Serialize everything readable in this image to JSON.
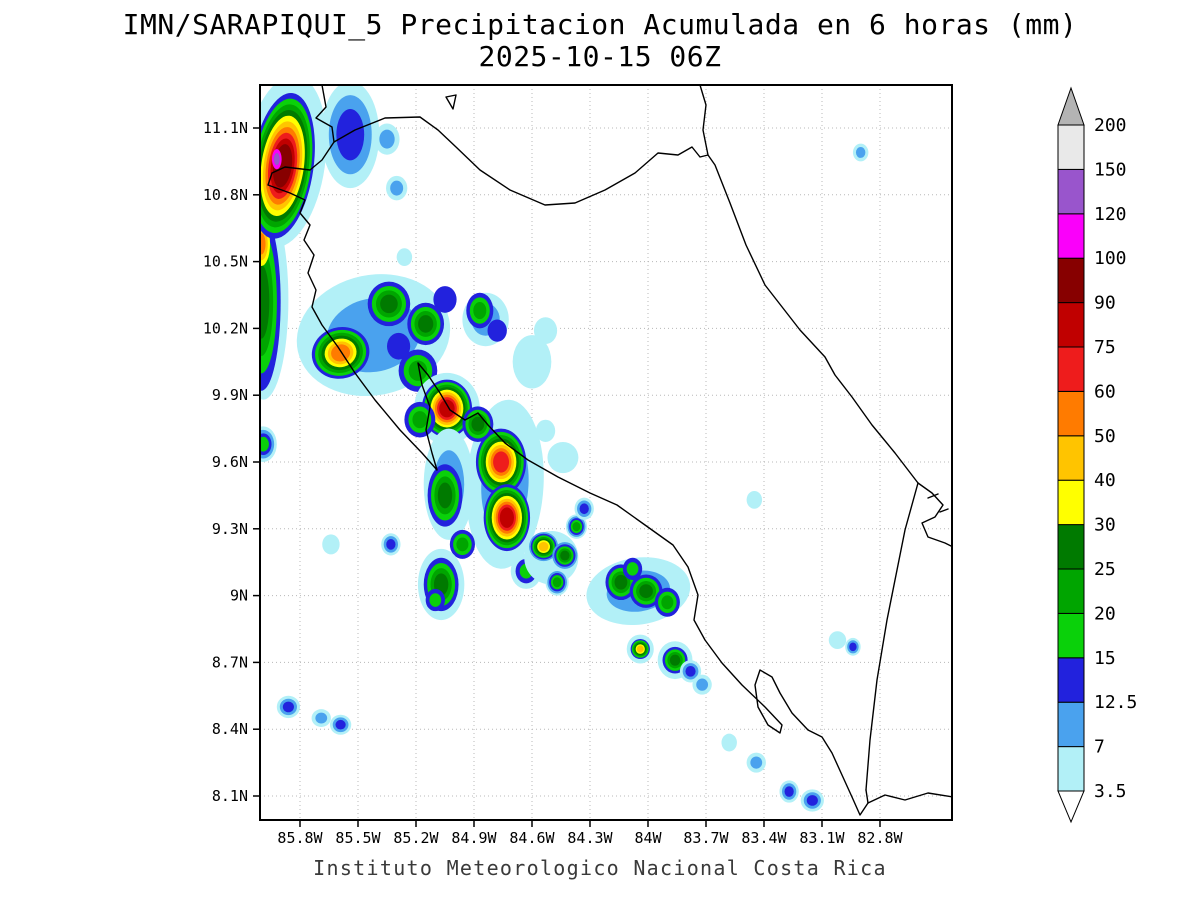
{
  "footer": "Instituto Meteorologico Nacional Costa Rica",
  "chart_data": {
    "type": "heatmap",
    "title": "IMN/SARAPIQUI_5 Precipitacion Acumulada en 6 horas (mm)",
    "subtitle": "2025-10-15 06Z",
    "units": "mm",
    "grid": true,
    "x_axis": {
      "ticks": [
        {
          "label": "85.8W",
          "lon": 85.8
        },
        {
          "label": "85.5W",
          "lon": 85.5
        },
        {
          "label": "85.2W",
          "lon": 85.2
        },
        {
          "label": "84.9W",
          "lon": 84.9
        },
        {
          "label": "84.6W",
          "lon": 84.6
        },
        {
          "label": "84.3W",
          "lon": 84.3
        },
        {
          "label": "84W",
          "lon": 84.0
        },
        {
          "label": "83.7W",
          "lon": 83.7
        },
        {
          "label": "83.4W",
          "lon": 83.4
        },
        {
          "label": "83.1W",
          "lon": 83.1
        },
        {
          "label": "82.8W",
          "lon": 82.8
        }
      ]
    },
    "y_axis": {
      "ticks": [
        {
          "label": "8.1N",
          "lat": 8.1
        },
        {
          "label": "8.4N",
          "lat": 8.4
        },
        {
          "label": "8.7N",
          "lat": 8.7
        },
        {
          "label": "9N",
          "lat": 9.0
        },
        {
          "label": "9.3N",
          "lat": 9.3
        },
        {
          "label": "9.6N",
          "lat": 9.6
        },
        {
          "label": "9.9N",
          "lat": 9.9
        },
        {
          "label": "10.2N",
          "lat": 10.2
        },
        {
          "label": "10.5N",
          "lat": 10.5
        },
        {
          "label": "10.8N",
          "lat": 10.8
        },
        {
          "label": "11.1N",
          "lat": 11.1
        }
      ]
    },
    "colorbar": {
      "levels": [
        "3.5",
        "7",
        "12.5",
        "15",
        "20",
        "25",
        "30",
        "40",
        "50",
        "60",
        "75",
        "90",
        "100",
        "120",
        "150",
        "200"
      ],
      "colors": [
        "#b2f0f7",
        "#4aa2ee",
        "#2222dd",
        "#0ad10a",
        "#00a500",
        "#007a00",
        "#ffff00",
        "#ffc400",
        "#ff7b00",
        "#ee1c1c",
        "#c00000",
        "#870000",
        "#fa00fa",
        "#9955cc",
        "#e9e9e9"
      ],
      "over_color": "#b4b4b4",
      "under_color": "#ffffff"
    },
    "cells": [
      {
        "lon": 85.88,
        "lat": 10.95,
        "rx": 0.21,
        "ry": 0.39,
        "peak": 7,
        "rot": 8
      },
      {
        "lon": 85.99,
        "lat": 10.33,
        "rx": 0.13,
        "ry": 0.45,
        "peak": 7
      },
      {
        "lon": 86.0,
        "lat": 10.32,
        "rx": 0.1,
        "ry": 0.4,
        "base": 12.5,
        "peak": 25
      },
      {
        "lon": 86.0,
        "lat": 10.58,
        "rx": 0.045,
        "ry": 0.1,
        "base": 30,
        "peak": 50
      },
      {
        "lon": 85.89,
        "lat": 10.93,
        "rx": 0.16,
        "ry": 0.33,
        "base": 12.5,
        "peak": 90,
        "rot": 8
      },
      {
        "lon": 85.92,
        "lat": 10.96,
        "rx": 0.025,
        "ry": 0.045,
        "base": 100,
        "peak": 120
      },
      {
        "lon": 85.99,
        "lat": 9.68,
        "rx": 0.07,
        "ry": 0.08,
        "peak": 15
      },
      {
        "lon": 85.54,
        "lat": 11.07,
        "rx": 0.15,
        "ry": 0.24,
        "peak": 12.5
      },
      {
        "lon": 85.35,
        "lat": 11.05,
        "rx": 0.065,
        "ry": 0.07,
        "peak": 7
      },
      {
        "lon": 85.3,
        "lat": 10.83,
        "rx": 0.055,
        "ry": 0.055,
        "peak": 7
      },
      {
        "lon": 85.26,
        "lat": 10.52,
        "rx": 0.04,
        "ry": 0.04,
        "peak": 3.5
      },
      {
        "lon": 85.42,
        "lat": 10.17,
        "rx": 0.4,
        "ry": 0.27,
        "peak": 7,
        "rot": -12
      },
      {
        "lon": 85.59,
        "lat": 10.09,
        "rx": 0.15,
        "ry": 0.115,
        "base": 12.5,
        "peak": 50,
        "rot": -15
      },
      {
        "lon": 85.34,
        "lat": 10.31,
        "rx": 0.11,
        "ry": 0.1,
        "base": 12.5,
        "peak": 25
      },
      {
        "lon": 85.15,
        "lat": 10.22,
        "rx": 0.095,
        "ry": 0.095,
        "base": 12.5,
        "peak": 25
      },
      {
        "lon": 85.19,
        "lat": 10.01,
        "rx": 0.1,
        "ry": 0.095,
        "base": 12.5,
        "peak": 20
      },
      {
        "lon": 85.29,
        "lat": 10.12,
        "rx": 0.06,
        "ry": 0.06,
        "base": 12.5,
        "peak": 12.5
      },
      {
        "lon": 85.05,
        "lat": 10.33,
        "rx": 0.06,
        "ry": 0.06,
        "base": 12.5,
        "peak": 12.5
      },
      {
        "lon": 84.84,
        "lat": 10.24,
        "rx": 0.12,
        "ry": 0.12,
        "peak": 7
      },
      {
        "lon": 84.87,
        "lat": 10.28,
        "rx": 0.07,
        "ry": 0.08,
        "base": 12.5,
        "peak": 20
      },
      {
        "lon": 84.78,
        "lat": 10.19,
        "rx": 0.05,
        "ry": 0.05,
        "base": 12.5,
        "peak": 12.5
      },
      {
        "lon": 84.6,
        "lat": 10.05,
        "rx": 0.1,
        "ry": 0.12,
        "peak": 3.5
      },
      {
        "lon": 84.53,
        "lat": 10.19,
        "rx": 0.06,
        "ry": 0.06,
        "peak": 3.5
      },
      {
        "lon": 85.04,
        "lat": 9.84,
        "rx": 0.17,
        "ry": 0.16,
        "peak": 7
      },
      {
        "lon": 85.04,
        "lat": 9.84,
        "rx": 0.13,
        "ry": 0.13,
        "base": 12.5,
        "peak": 75
      },
      {
        "lon": 85.18,
        "lat": 9.79,
        "rx": 0.08,
        "ry": 0.08,
        "base": 12.5,
        "peak": 20
      },
      {
        "lon": 84.74,
        "lat": 9.5,
        "rx": 0.2,
        "ry": 0.38,
        "peak": 7,
        "rot": 3
      },
      {
        "lon": 85.03,
        "lat": 9.5,
        "rx": 0.13,
        "ry": 0.25,
        "peak": 7
      },
      {
        "lon": 84.76,
        "lat": 9.6,
        "rx": 0.13,
        "ry": 0.15,
        "base": 12.5,
        "peak": 60
      },
      {
        "lon": 84.73,
        "lat": 9.35,
        "rx": 0.12,
        "ry": 0.15,
        "base": 12.5,
        "peak": 75
      },
      {
        "lon": 84.88,
        "lat": 9.77,
        "rx": 0.08,
        "ry": 0.08,
        "base": 12.5,
        "peak": 25
      },
      {
        "lon": 85.05,
        "lat": 9.45,
        "rx": 0.09,
        "ry": 0.14,
        "base": 12.5,
        "peak": 25
      },
      {
        "lon": 84.96,
        "lat": 9.23,
        "rx": 0.065,
        "ry": 0.065,
        "base": 12.5,
        "peak": 20
      },
      {
        "lon": 84.63,
        "lat": 9.11,
        "rx": 0.08,
        "ry": 0.08,
        "peak": 7
      },
      {
        "lon": 84.63,
        "lat": 9.11,
        "rx": 0.055,
        "ry": 0.055,
        "base": 12.5,
        "peak": 15
      },
      {
        "lon": 85.07,
        "lat": 9.05,
        "rx": 0.12,
        "ry": 0.16,
        "peak": 7
      },
      {
        "lon": 85.07,
        "lat": 9.05,
        "rx": 0.09,
        "ry": 0.12,
        "base": 12.5,
        "peak": 25
      },
      {
        "lon": 85.1,
        "lat": 8.98,
        "rx": 0.05,
        "ry": 0.05,
        "base": 12.5,
        "peak": 15
      },
      {
        "lon": 85.33,
        "lat": 9.23,
        "rx": 0.05,
        "ry": 0.05,
        "peak": 12.5
      },
      {
        "lon": 85.64,
        "lat": 9.23,
        "rx": 0.045,
        "ry": 0.045,
        "peak": 3.5
      },
      {
        "lon": 84.5,
        "lat": 9.17,
        "rx": 0.14,
        "ry": 0.12,
        "peak": 3.5,
        "rot": -20
      },
      {
        "lon": 84.54,
        "lat": 9.22,
        "rx": 0.075,
        "ry": 0.065,
        "base": 7,
        "peak": 40
      },
      {
        "lon": 84.43,
        "lat": 9.18,
        "rx": 0.065,
        "ry": 0.06,
        "base": 7,
        "peak": 25
      },
      {
        "lon": 84.37,
        "lat": 9.31,
        "rx": 0.055,
        "ry": 0.055,
        "peak": 20
      },
      {
        "lon": 84.33,
        "lat": 9.39,
        "rx": 0.05,
        "ry": 0.05,
        "peak": 12.5
      },
      {
        "lon": 84.47,
        "lat": 9.06,
        "rx": 0.06,
        "ry": 0.06,
        "peak": 20
      },
      {
        "lon": 84.05,
        "lat": 9.02,
        "rx": 0.27,
        "ry": 0.15,
        "peak": 7,
        "rot": -8
      },
      {
        "lon": 84.14,
        "lat": 9.06,
        "rx": 0.08,
        "ry": 0.08,
        "base": 12.5,
        "peak": 25
      },
      {
        "lon": 84.01,
        "lat": 9.02,
        "rx": 0.085,
        "ry": 0.075,
        "base": 12.5,
        "peak": 25
      },
      {
        "lon": 83.9,
        "lat": 8.97,
        "rx": 0.065,
        "ry": 0.065,
        "base": 12.5,
        "peak": 20
      },
      {
        "lon": 84.08,
        "lat": 9.12,
        "rx": 0.05,
        "ry": 0.05,
        "base": 12.5,
        "peak": 15
      },
      {
        "lon": 84.04,
        "lat": 8.76,
        "rx": 0.07,
        "ry": 0.065,
        "peak": 7
      },
      {
        "lon": 84.04,
        "lat": 8.76,
        "rx": 0.05,
        "ry": 0.045,
        "base": 12.5,
        "peak": 40
      },
      {
        "lon": 83.86,
        "lat": 8.71,
        "rx": 0.09,
        "ry": 0.085,
        "peak": 7
      },
      {
        "lon": 83.86,
        "lat": 8.71,
        "rx": 0.065,
        "ry": 0.06,
        "base": 12.5,
        "peak": 25
      },
      {
        "lon": 83.78,
        "lat": 8.66,
        "rx": 0.055,
        "ry": 0.05,
        "peak": 12.5
      },
      {
        "lon": 83.72,
        "lat": 8.6,
        "rx": 0.05,
        "ry": 0.045,
        "peak": 7
      },
      {
        "lon": 85.86,
        "lat": 8.5,
        "rx": 0.06,
        "ry": 0.05,
        "peak": 12.5
      },
      {
        "lon": 85.69,
        "lat": 8.45,
        "rx": 0.05,
        "ry": 0.04,
        "peak": 7
      },
      {
        "lon": 85.59,
        "lat": 8.42,
        "rx": 0.055,
        "ry": 0.045,
        "peak": 12.5
      },
      {
        "lon": 84.44,
        "lat": 9.62,
        "rx": 0.08,
        "ry": 0.07,
        "peak": 3.5
      },
      {
        "lon": 84.53,
        "lat": 9.74,
        "rx": 0.05,
        "ry": 0.05,
        "peak": 3.5
      },
      {
        "lon": 83.58,
        "lat": 8.34,
        "rx": 0.04,
        "ry": 0.04,
        "peak": 3.5
      },
      {
        "lon": 83.44,
        "lat": 8.25,
        "rx": 0.05,
        "ry": 0.045,
        "peak": 7
      },
      {
        "lon": 83.27,
        "lat": 8.12,
        "rx": 0.05,
        "ry": 0.05,
        "peak": 12.5
      },
      {
        "lon": 83.15,
        "lat": 8.08,
        "rx": 0.06,
        "ry": 0.05,
        "peak": 12.5
      },
      {
        "lon": 83.02,
        "lat": 8.8,
        "rx": 0.045,
        "ry": 0.04,
        "peak": 3.5
      },
      {
        "lon": 82.94,
        "lat": 8.77,
        "rx": 0.04,
        "ry": 0.04,
        "peak": 12.5
      },
      {
        "lon": 82.9,
        "lat": 10.99,
        "rx": 0.04,
        "ry": 0.04,
        "peak": 7
      },
      {
        "lon": 83.45,
        "lat": 9.43,
        "rx": 0.04,
        "ry": 0.04,
        "peak": 3.5
      }
    ]
  }
}
